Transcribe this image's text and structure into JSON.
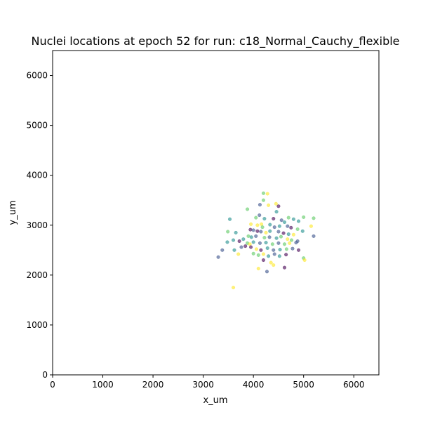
{
  "chart_data": {
    "type": "scatter",
    "title": "Nuclei locations at epoch 52 for run: c18_Normal_Cauchy_flexible",
    "xlabel": "x_um",
    "ylabel": "y_um",
    "xlim": [
      0,
      6500
    ],
    "ylim": [
      0,
      6500
    ],
    "xticks": [
      0,
      1000,
      2000,
      3000,
      4000,
      5000,
      6000
    ],
    "yticks": [
      0,
      1000,
      2000,
      3000,
      4000,
      5000,
      6000
    ],
    "grid": false,
    "legend": "none",
    "marker_alpha": 0.6,
    "colormap": "viridis",
    "colors": {
      "dark_purple": "#440154",
      "blue": "#3b528b",
      "teal": "#21908d",
      "green": "#5dc963",
      "yellow": "#fde725"
    },
    "points": [
      {
        "x": 4200,
        "y": 3640,
        "c": "green"
      },
      {
        "x": 4280,
        "y": 3630,
        "c": "yellow"
      },
      {
        "x": 4200,
        "y": 3500,
        "c": "green"
      },
      {
        "x": 4450,
        "y": 3430,
        "c": "yellow"
      },
      {
        "x": 4500,
        "y": 3380,
        "c": "dark_purple"
      },
      {
        "x": 4300,
        "y": 3400,
        "c": "yellow"
      },
      {
        "x": 4130,
        "y": 3410,
        "c": "blue"
      },
      {
        "x": 3880,
        "y": 3320,
        "c": "green"
      },
      {
        "x": 4460,
        "y": 3270,
        "c": "teal"
      },
      {
        "x": 4120,
        "y": 3200,
        "c": "blue"
      },
      {
        "x": 4050,
        "y": 3150,
        "c": "green"
      },
      {
        "x": 4220,
        "y": 3130,
        "c": "teal"
      },
      {
        "x": 4400,
        "y": 3130,
        "c": "dark_purple"
      },
      {
        "x": 4560,
        "y": 3100,
        "c": "blue"
      },
      {
        "x": 4620,
        "y": 3060,
        "c": "teal"
      },
      {
        "x": 4700,
        "y": 3150,
        "c": "green"
      },
      {
        "x": 4800,
        "y": 3120,
        "c": "teal"
      },
      {
        "x": 4900,
        "y": 3080,
        "c": "teal"
      },
      {
        "x": 5000,
        "y": 3160,
        "c": "green"
      },
      {
        "x": 5200,
        "y": 3140,
        "c": "green"
      },
      {
        "x": 3530,
        "y": 3120,
        "c": "teal"
      },
      {
        "x": 3650,
        "y": 2850,
        "c": "teal"
      },
      {
        "x": 3490,
        "y": 2870,
        "c": "green"
      },
      {
        "x": 3950,
        "y": 3020,
        "c": "yellow"
      },
      {
        "x": 4080,
        "y": 3000,
        "c": "yellow"
      },
      {
        "x": 4160,
        "y": 3020,
        "c": "yellow"
      },
      {
        "x": 4180,
        "y": 2960,
        "c": "green"
      },
      {
        "x": 4330,
        "y": 3010,
        "c": "teal"
      },
      {
        "x": 4420,
        "y": 2960,
        "c": "blue"
      },
      {
        "x": 4520,
        "y": 2980,
        "c": "teal"
      },
      {
        "x": 4680,
        "y": 2980,
        "c": "blue"
      },
      {
        "x": 4750,
        "y": 2950,
        "c": "dark_purple"
      },
      {
        "x": 4880,
        "y": 2920,
        "c": "green"
      },
      {
        "x": 4980,
        "y": 2880,
        "c": "teal"
      },
      {
        "x": 5150,
        "y": 2980,
        "c": "yellow"
      },
      {
        "x": 5200,
        "y": 2780,
        "c": "blue"
      },
      {
        "x": 3940,
        "y": 2910,
        "c": "dark_purple"
      },
      {
        "x": 4000,
        "y": 2900,
        "c": "blue"
      },
      {
        "x": 4080,
        "y": 2880,
        "c": "dark_purple"
      },
      {
        "x": 4150,
        "y": 2870,
        "c": "blue"
      },
      {
        "x": 4250,
        "y": 2850,
        "c": "yellow"
      },
      {
        "x": 4330,
        "y": 2880,
        "c": "teal"
      },
      {
        "x": 4500,
        "y": 2870,
        "c": "blue"
      },
      {
        "x": 4600,
        "y": 2840,
        "c": "dark_purple"
      },
      {
        "x": 4700,
        "y": 2820,
        "c": "teal"
      },
      {
        "x": 4800,
        "y": 2810,
        "c": "yellow"
      },
      {
        "x": 3900,
        "y": 2780,
        "c": "green"
      },
      {
        "x": 3960,
        "y": 2760,
        "c": "teal"
      },
      {
        "x": 4050,
        "y": 2780,
        "c": "blue"
      },
      {
        "x": 4220,
        "y": 2750,
        "c": "green"
      },
      {
        "x": 4320,
        "y": 2760,
        "c": "blue"
      },
      {
        "x": 4460,
        "y": 2740,
        "c": "teal"
      },
      {
        "x": 4550,
        "y": 2770,
        "c": "green"
      },
      {
        "x": 4680,
        "y": 2720,
        "c": "yellow"
      },
      {
        "x": 4760,
        "y": 2700,
        "c": "green"
      },
      {
        "x": 4880,
        "y": 2680,
        "c": "blue"
      },
      {
        "x": 3480,
        "y": 2660,
        "c": "teal"
      },
      {
        "x": 3600,
        "y": 2700,
        "c": "teal"
      },
      {
        "x": 3720,
        "y": 2680,
        "c": "dark_purple"
      },
      {
        "x": 3800,
        "y": 2720,
        "c": "teal"
      },
      {
        "x": 3880,
        "y": 2640,
        "c": "green"
      },
      {
        "x": 3930,
        "y": 2620,
        "c": "yellow"
      },
      {
        "x": 4000,
        "y": 2660,
        "c": "teal"
      },
      {
        "x": 4130,
        "y": 2640,
        "c": "blue"
      },
      {
        "x": 4250,
        "y": 2650,
        "c": "teal"
      },
      {
        "x": 4380,
        "y": 2620,
        "c": "green"
      },
      {
        "x": 4500,
        "y": 2640,
        "c": "blue"
      },
      {
        "x": 4620,
        "y": 2620,
        "c": "green"
      },
      {
        "x": 4720,
        "y": 2640,
        "c": "yellow"
      },
      {
        "x": 4850,
        "y": 2650,
        "c": "blue"
      },
      {
        "x": 3380,
        "y": 2500,
        "c": "blue"
      },
      {
        "x": 3620,
        "y": 2500,
        "c": "teal"
      },
      {
        "x": 3760,
        "y": 2560,
        "c": "blue"
      },
      {
        "x": 3840,
        "y": 2580,
        "c": "dark_purple"
      },
      {
        "x": 3950,
        "y": 2560,
        "c": "dark_purple"
      },
      {
        "x": 4060,
        "y": 2520,
        "c": "yellow"
      },
      {
        "x": 4150,
        "y": 2500,
        "c": "dark_purple"
      },
      {
        "x": 4280,
        "y": 2540,
        "c": "teal"
      },
      {
        "x": 4400,
        "y": 2500,
        "c": "blue"
      },
      {
        "x": 4530,
        "y": 2510,
        "c": "teal"
      },
      {
        "x": 4660,
        "y": 2520,
        "c": "green"
      },
      {
        "x": 4780,
        "y": 2530,
        "c": "blue"
      },
      {
        "x": 4900,
        "y": 2500,
        "c": "dark_purple"
      },
      {
        "x": 3300,
        "y": 2360,
        "c": "blue"
      },
      {
        "x": 3700,
        "y": 2420,
        "c": "yellow"
      },
      {
        "x": 4000,
        "y": 2430,
        "c": "green"
      },
      {
        "x": 4100,
        "y": 2400,
        "c": "green"
      },
      {
        "x": 4200,
        "y": 2420,
        "c": "yellow"
      },
      {
        "x": 4300,
        "y": 2380,
        "c": "teal"
      },
      {
        "x": 4420,
        "y": 2420,
        "c": "blue"
      },
      {
        "x": 4520,
        "y": 2380,
        "c": "teal"
      },
      {
        "x": 4650,
        "y": 2410,
        "c": "dark_purple"
      },
      {
        "x": 5000,
        "y": 2340,
        "c": "green"
      },
      {
        "x": 5020,
        "y": 2300,
        "c": "yellow"
      },
      {
        "x": 4200,
        "y": 2300,
        "c": "dark_purple"
      },
      {
        "x": 4350,
        "y": 2250,
        "c": "yellow"
      },
      {
        "x": 4400,
        "y": 2200,
        "c": "yellow"
      },
      {
        "x": 4620,
        "y": 2150,
        "c": "dark_purple"
      },
      {
        "x": 4100,
        "y": 2130,
        "c": "yellow"
      },
      {
        "x": 4270,
        "y": 2070,
        "c": "blue"
      },
      {
        "x": 3600,
        "y": 1750,
        "c": "yellow"
      }
    ]
  }
}
